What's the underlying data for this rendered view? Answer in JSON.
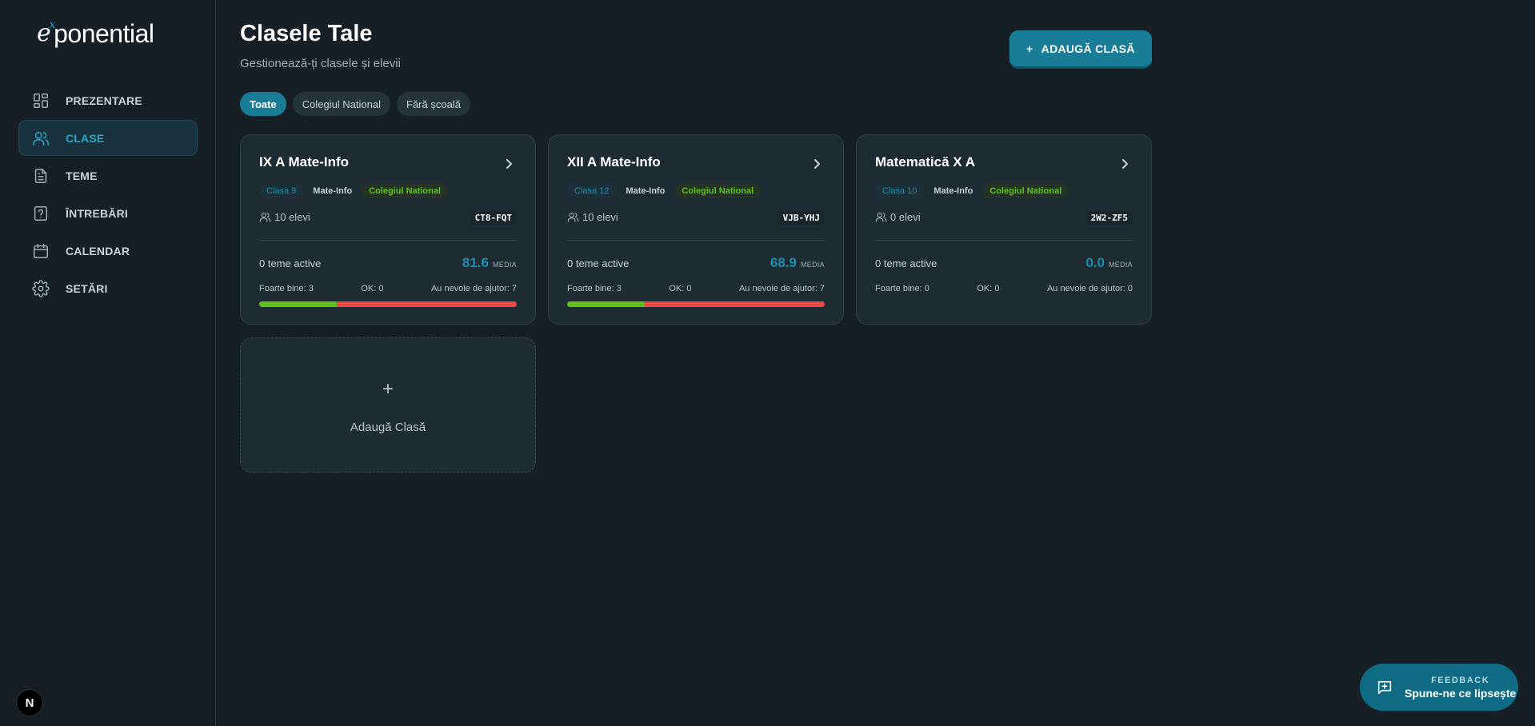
{
  "logo": {
    "e": "e",
    "x": "x",
    "rest": "ponential"
  },
  "sidebar": {
    "items": [
      {
        "label": "PREZENTARE",
        "icon": "dashboard-icon",
        "active": false
      },
      {
        "label": "CLASE",
        "icon": "users-icon",
        "active": true
      },
      {
        "label": "TEME",
        "icon": "document-icon",
        "active": false
      },
      {
        "label": "ÎNTREBĂRI",
        "icon": "question-icon",
        "active": false
      },
      {
        "label": "CALENDAR",
        "icon": "calendar-icon",
        "active": false
      },
      {
        "label": "SETĂRI",
        "icon": "gear-icon",
        "active": false
      }
    ],
    "badge": "N"
  },
  "header": {
    "title": "Clasele Tale",
    "subtitle": "Gestionează-ți clasele și elevii",
    "add_button": "ADAUGĂ CLASĂ",
    "add_icon": "+"
  },
  "filters": [
    "Toate",
    "Colegiul National",
    "Fără școală"
  ],
  "cards": [
    {
      "title": "IX A Mate-Info",
      "grade": "Clasa 9",
      "profile": "Mate-Info",
      "school": "Colegiul National",
      "students": "10 elevi",
      "code": "CT8-FQT",
      "active_hw": "0 teme active",
      "average": "81.6",
      "average_label": "MEDIA",
      "stats": {
        "good": "Foarte bine: 3",
        "ok": "OK: 0",
        "help": "Au nevoie de ajutor: 7"
      },
      "bar": {
        "good": 3,
        "ok": 0,
        "help": 7
      }
    },
    {
      "title": "XII A Mate-Info",
      "grade": "Clasa 12",
      "profile": "Mate-Info",
      "school": "Colegiul National",
      "students": "10 elevi",
      "code": "VJB-YHJ",
      "active_hw": "0 teme active",
      "average": "68.9",
      "average_label": "MEDIA",
      "stats": {
        "good": "Foarte bine: 3",
        "ok": "OK: 0",
        "help": "Au nevoie de ajutor: 7"
      },
      "bar": {
        "good": 3,
        "ok": 0,
        "help": 7
      }
    },
    {
      "title": "Matematică X A",
      "grade": "Clasa 10",
      "profile": "Mate-Info",
      "school": "Colegiul National",
      "students": "0 elevi",
      "code": "2W2-ZF5",
      "active_hw": "0 teme active",
      "average": "0.0",
      "average_label": "MEDIA",
      "stats": {
        "good": "Foarte bine: 0",
        "ok": "OK: 0",
        "help": "Au nevoie de ajutor: 0"
      },
      "bar": {
        "good": 0,
        "ok": 0,
        "help": 0
      }
    }
  ],
  "add_card": {
    "plus": "+",
    "label": "Adaugă Clasă"
  },
  "feedback": {
    "kicker": "FEEDBACK",
    "text": "Spune-ne ce lipsește"
  },
  "colors": {
    "accent": "#1a7d98",
    "good": "#5ec21a",
    "help": "#ef4848",
    "ok": "#e0b42a"
  }
}
